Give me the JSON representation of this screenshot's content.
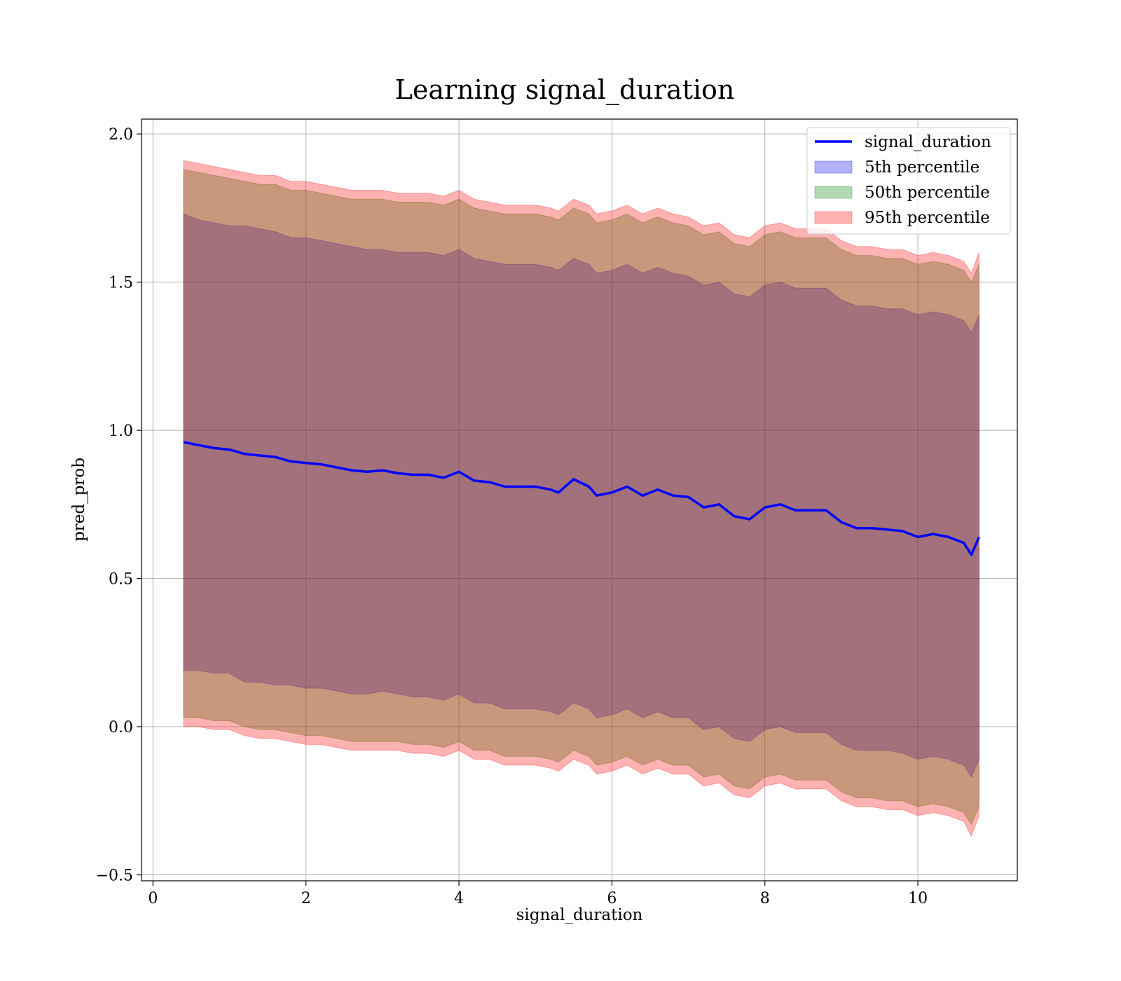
{
  "chart_data": {
    "type": "area",
    "title": "Learning signal_duration",
    "xlabel": "signal_duration",
    "ylabel": "pred_prob",
    "xlim": [
      -0.15,
      11.3
    ],
    "ylim": [
      -0.52,
      2.05
    ],
    "xticks": [
      0,
      2,
      4,
      6,
      8,
      10
    ],
    "xtick_labels": [
      "0",
      "2",
      "4",
      "6",
      "8",
      "10"
    ],
    "yticks": [
      -0.5,
      0.0,
      0.5,
      1.0,
      1.5,
      2.0
    ],
    "ytick_labels": [
      "−0.5",
      "0.0",
      "0.5",
      "1.0",
      "1.5",
      "2.0"
    ],
    "grid": true,
    "legend_position": "top-right",
    "line": {
      "name": "signal_duration",
      "color": "#0000ff",
      "x": [
        0.4,
        0.6,
        0.8,
        1.0,
        1.2,
        1.4,
        1.6,
        1.8,
        2.0,
        2.2,
        2.4,
        2.6,
        2.8,
        3.0,
        3.2,
        3.4,
        3.6,
        3.8,
        4.0,
        4.2,
        4.4,
        4.6,
        4.8,
        5.0,
        5.2,
        5.3,
        5.5,
        5.7,
        5.8,
        6.0,
        6.2,
        6.4,
        6.6,
        6.8,
        7.0,
        7.2,
        7.4,
        7.6,
        7.8,
        8.0,
        8.2,
        8.4,
        8.6,
        8.8,
        9.0,
        9.2,
        9.4,
        9.6,
        9.8,
        10.0,
        10.2,
        10.4,
        10.6,
        10.7,
        10.8
      ],
      "y": [
        0.96,
        0.95,
        0.94,
        0.935,
        0.92,
        0.915,
        0.91,
        0.895,
        0.89,
        0.885,
        0.875,
        0.865,
        0.86,
        0.865,
        0.855,
        0.85,
        0.85,
        0.84,
        0.86,
        0.83,
        0.825,
        0.81,
        0.81,
        0.81,
        0.8,
        0.79,
        0.835,
        0.81,
        0.78,
        0.79,
        0.81,
        0.78,
        0.8,
        0.78,
        0.775,
        0.74,
        0.75,
        0.71,
        0.7,
        0.74,
        0.75,
        0.73,
        0.73,
        0.73,
        0.69,
        0.67,
        0.67,
        0.665,
        0.66,
        0.64,
        0.65,
        0.64,
        0.62,
        0.58,
        0.64
      ]
    },
    "bands": [
      {
        "name": "5th percentile",
        "color": "#0000ff",
        "upper": [
          1.73,
          1.71,
          1.7,
          1.69,
          1.69,
          1.68,
          1.67,
          1.65,
          1.65,
          1.64,
          1.63,
          1.62,
          1.61,
          1.61,
          1.6,
          1.6,
          1.6,
          1.59,
          1.61,
          1.58,
          1.57,
          1.56,
          1.56,
          1.56,
          1.55,
          1.54,
          1.58,
          1.56,
          1.53,
          1.54,
          1.56,
          1.53,
          1.55,
          1.53,
          1.52,
          1.49,
          1.5,
          1.46,
          1.45,
          1.49,
          1.5,
          1.48,
          1.48,
          1.48,
          1.44,
          1.42,
          1.42,
          1.41,
          1.41,
          1.39,
          1.4,
          1.39,
          1.37,
          1.33,
          1.39
        ],
        "lower": [
          0.19,
          0.19,
          0.18,
          0.18,
          0.15,
          0.15,
          0.14,
          0.14,
          0.13,
          0.13,
          0.12,
          0.11,
          0.11,
          0.12,
          0.11,
          0.1,
          0.1,
          0.09,
          0.11,
          0.08,
          0.08,
          0.06,
          0.06,
          0.06,
          0.05,
          0.04,
          0.08,
          0.06,
          0.03,
          0.04,
          0.06,
          0.03,
          0.05,
          0.03,
          0.03,
          -0.01,
          0.0,
          -0.04,
          -0.05,
          -0.01,
          0.0,
          -0.02,
          -0.02,
          -0.02,
          -0.06,
          -0.08,
          -0.08,
          -0.08,
          -0.09,
          -0.11,
          -0.1,
          -0.11,
          -0.13,
          -0.17,
          -0.11
        ]
      },
      {
        "name": "50th percentile",
        "color": "#008000",
        "upper": [
          1.88,
          1.87,
          1.86,
          1.85,
          1.84,
          1.83,
          1.83,
          1.81,
          1.81,
          1.8,
          1.79,
          1.78,
          1.78,
          1.78,
          1.77,
          1.77,
          1.77,
          1.76,
          1.78,
          1.75,
          1.74,
          1.73,
          1.73,
          1.73,
          1.72,
          1.71,
          1.75,
          1.73,
          1.7,
          1.71,
          1.73,
          1.7,
          1.72,
          1.7,
          1.69,
          1.66,
          1.67,
          1.63,
          1.62,
          1.66,
          1.67,
          1.65,
          1.65,
          1.65,
          1.61,
          1.59,
          1.59,
          1.58,
          1.58,
          1.56,
          1.57,
          1.56,
          1.54,
          1.5,
          1.56
        ],
        "lower": [
          0.03,
          0.03,
          0.02,
          0.02,
          0.0,
          -0.01,
          -0.01,
          -0.02,
          -0.03,
          -0.03,
          -0.04,
          -0.05,
          -0.05,
          -0.05,
          -0.05,
          -0.06,
          -0.06,
          -0.07,
          -0.05,
          -0.08,
          -0.08,
          -0.1,
          -0.1,
          -0.1,
          -0.11,
          -0.12,
          -0.08,
          -0.1,
          -0.13,
          -0.12,
          -0.1,
          -0.13,
          -0.11,
          -0.13,
          -0.13,
          -0.17,
          -0.16,
          -0.2,
          -0.21,
          -0.17,
          -0.16,
          -0.18,
          -0.18,
          -0.18,
          -0.22,
          -0.24,
          -0.24,
          -0.25,
          -0.25,
          -0.27,
          -0.26,
          -0.27,
          -0.29,
          -0.33,
          -0.27
        ]
      },
      {
        "name": "95th percentile",
        "color": "#ff0000",
        "upper": [
          1.91,
          1.9,
          1.89,
          1.88,
          1.87,
          1.86,
          1.86,
          1.84,
          1.84,
          1.83,
          1.82,
          1.81,
          1.81,
          1.81,
          1.8,
          1.8,
          1.8,
          1.79,
          1.81,
          1.78,
          1.77,
          1.76,
          1.76,
          1.76,
          1.75,
          1.74,
          1.78,
          1.76,
          1.73,
          1.74,
          1.76,
          1.73,
          1.75,
          1.73,
          1.72,
          1.69,
          1.7,
          1.66,
          1.65,
          1.69,
          1.7,
          1.68,
          1.68,
          1.68,
          1.64,
          1.62,
          1.62,
          1.61,
          1.61,
          1.59,
          1.6,
          1.59,
          1.57,
          1.53,
          1.6
        ],
        "lower": [
          0.0,
          0.0,
          -0.01,
          -0.01,
          -0.03,
          -0.04,
          -0.04,
          -0.05,
          -0.06,
          -0.06,
          -0.07,
          -0.08,
          -0.08,
          -0.08,
          -0.08,
          -0.09,
          -0.09,
          -0.1,
          -0.08,
          -0.11,
          -0.11,
          -0.13,
          -0.13,
          -0.13,
          -0.14,
          -0.15,
          -0.11,
          -0.13,
          -0.16,
          -0.15,
          -0.13,
          -0.16,
          -0.14,
          -0.16,
          -0.16,
          -0.2,
          -0.19,
          -0.23,
          -0.24,
          -0.2,
          -0.19,
          -0.21,
          -0.21,
          -0.21,
          -0.25,
          -0.27,
          -0.27,
          -0.28,
          -0.28,
          -0.3,
          -0.29,
          -0.3,
          -0.32,
          -0.37,
          -0.3
        ]
      }
    ]
  }
}
